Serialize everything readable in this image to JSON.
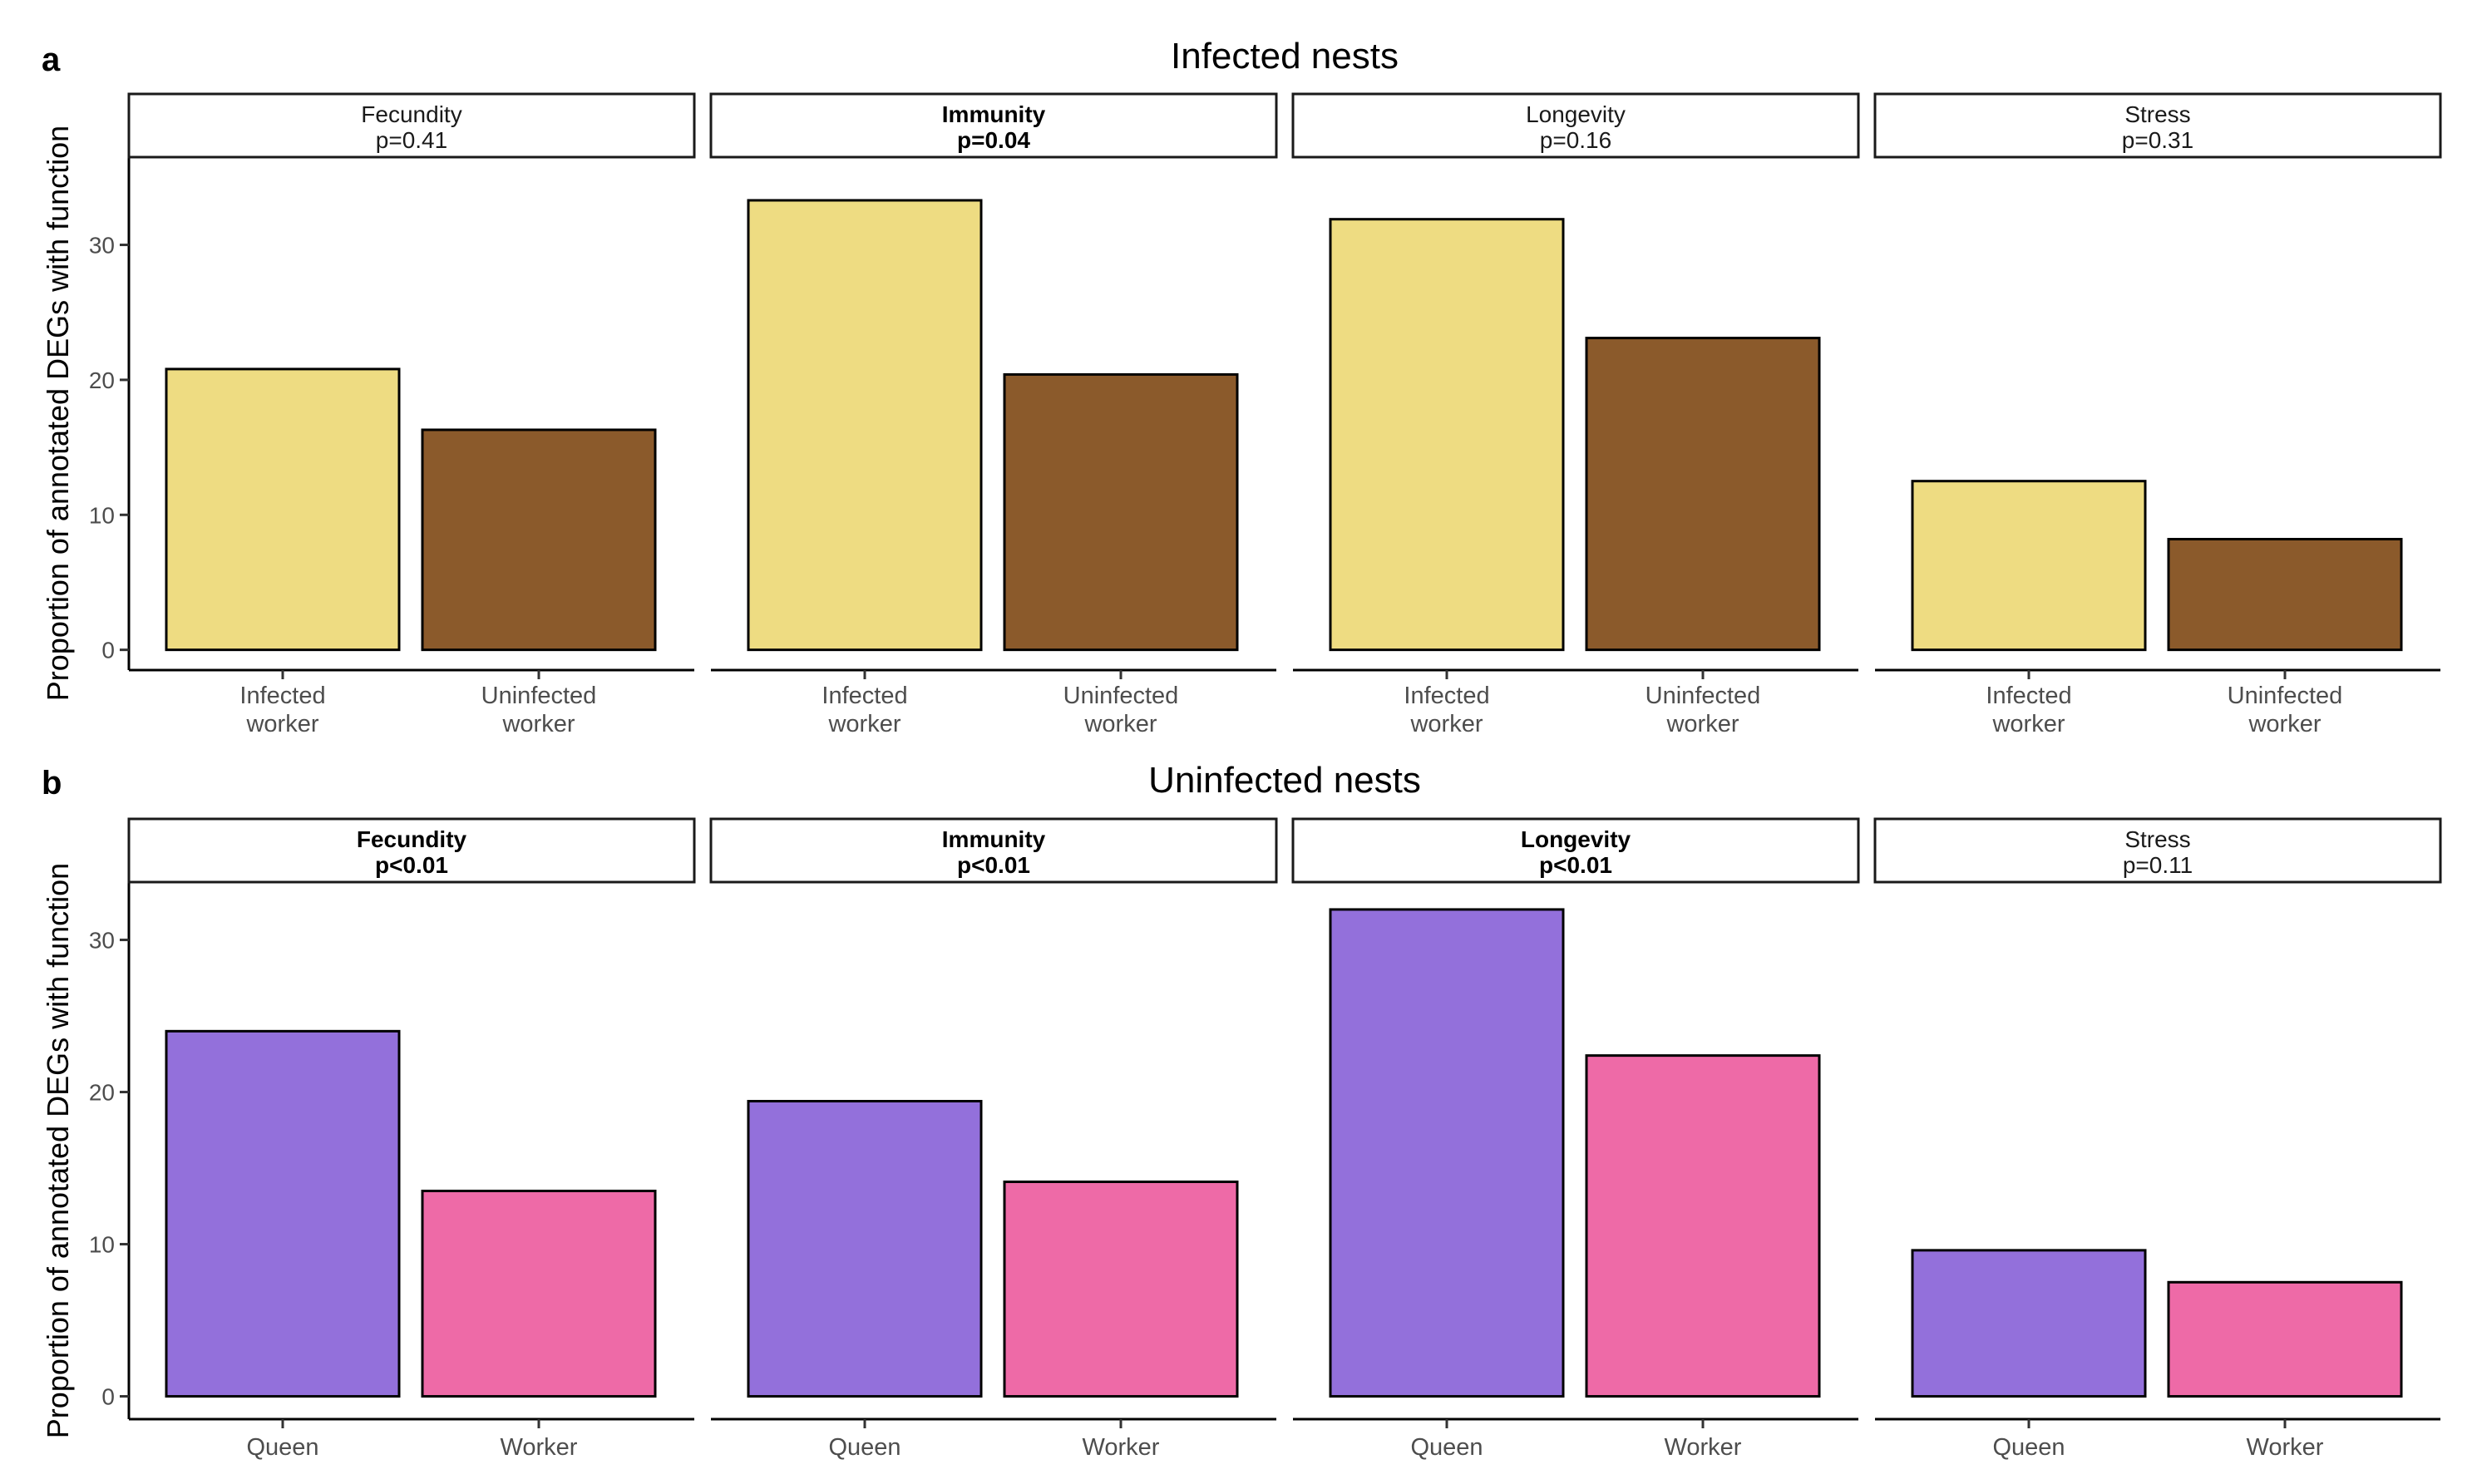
{
  "colors": {
    "infected": "#EEDC82",
    "uninfected": "#8B5A2B",
    "queen": "#9370DB",
    "worker": "#EE6AA7"
  },
  "chart_data": [
    {
      "type": "bar",
      "panel_letter": "a",
      "title": "Infected nests",
      "ylabel": "Proportion of annotated DEGs with function",
      "ylim": [
        -1.5,
        36.5
      ],
      "yticks": [
        "0",
        "10",
        "20",
        "30"
      ],
      "categories": [
        {
          "line1": "Infected",
          "line2": "worker",
          "color": "infected"
        },
        {
          "line1": "Uninfected",
          "line2": "worker",
          "color": "uninfected"
        }
      ],
      "facets": [
        {
          "name": "Fecundity",
          "p": "p=0.41",
          "bold": false,
          "values": [
            20.8,
            16.3
          ]
        },
        {
          "name": "Immunity",
          "p": "p=0.04",
          "bold": true,
          "values": [
            33.3,
            20.4
          ]
        },
        {
          "name": "Longevity",
          "p": "p=0.16",
          "bold": false,
          "values": [
            31.9,
            23.1
          ]
        },
        {
          "name": "Stress",
          "p": "p=0.31",
          "bold": false,
          "values": [
            12.5,
            8.2
          ]
        }
      ]
    },
    {
      "type": "bar",
      "panel_letter": "b",
      "title": "Uninfected nests",
      "ylabel": "Proportion of annotated DEGs with function",
      "ylim": [
        -1.5,
        33.8
      ],
      "yticks": [
        "0",
        "10",
        "20",
        "30"
      ],
      "categories": [
        {
          "line1": "Queen",
          "line2": "",
          "color": "queen"
        },
        {
          "line1": "Worker",
          "line2": "",
          "color": "worker"
        }
      ],
      "facets": [
        {
          "name": "Fecundity",
          "p": "p<0.01",
          "bold": true,
          "values": [
            24.0,
            13.5
          ]
        },
        {
          "name": "Immunity",
          "p": "p<0.01",
          "bold": true,
          "values": [
            19.4,
            14.1
          ]
        },
        {
          "name": "Longevity",
          "p": "p<0.01",
          "bold": true,
          "values": [
            32.0,
            22.4
          ]
        },
        {
          "name": "Stress",
          "p": "p=0.11",
          "bold": false,
          "values": [
            9.6,
            7.5
          ]
        }
      ]
    }
  ]
}
